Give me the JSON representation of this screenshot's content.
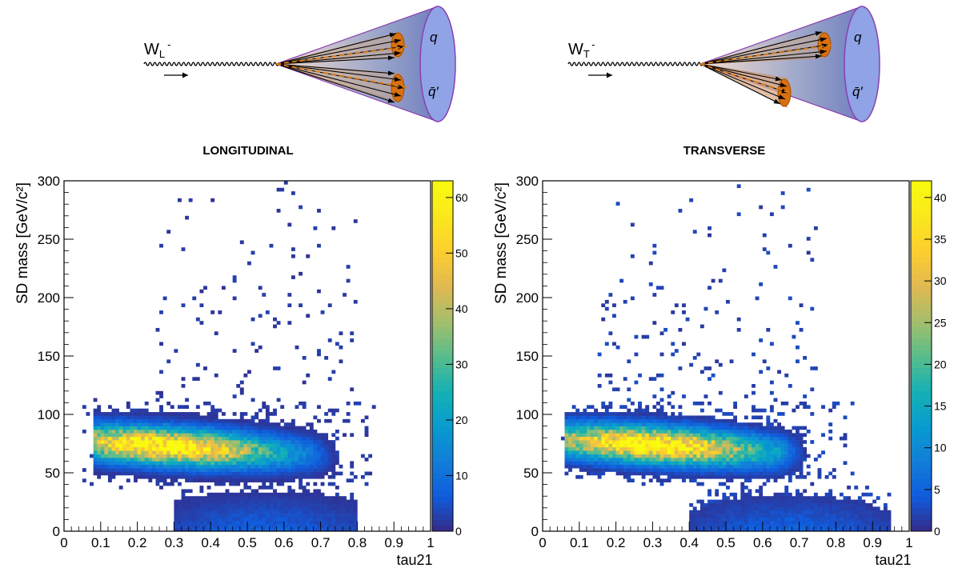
{
  "diagrams": [
    {
      "boson": "W",
      "pol_sub": "L",
      "charge": "-",
      "quark": "q",
      "antiquark": "q̄′",
      "title": "LONGITUDINAL"
    },
    {
      "boson": "W",
      "pol_sub": "T",
      "charge": "-",
      "quark": "q",
      "antiquark": "q̄′",
      "title": "TRANSVERSE"
    }
  ],
  "colors": {
    "cone_outline": "#8a3fb0",
    "cone_fill": "#6f7fbf",
    "cone_mouth": "#8fa3e6",
    "subjet": "#d9700f",
    "dashed": "#e07d10",
    "arrow": "#000000"
  },
  "chart_data": [
    {
      "type": "heatmap",
      "xlabel": "tau21",
      "ylabel": "SD mass [GeV/c²]",
      "xlim": [
        0,
        1
      ],
      "ylim": [
        0,
        300
      ],
      "xticks": [
        "0",
        "0.1",
        "0.2",
        "0.3",
        "0.4",
        "0.5",
        "0.6",
        "0.7",
        "0.8",
        "0.9",
        "1"
      ],
      "yticks": [
        "0",
        "50",
        "100",
        "150",
        "200",
        "250",
        "300"
      ],
      "zlim": [
        0,
        63
      ],
      "zticks": [
        "0",
        "10",
        "20",
        "30",
        "40",
        "50",
        "60"
      ],
      "colormap": "viridis",
      "bins": {
        "x": 100,
        "y": 100
      },
      "density_model": {
        "peak": {
          "x": 0.27,
          "y": 73,
          "value": 63
        },
        "band_x_range": [
          0.08,
          0.68
        ],
        "band_y_range": [
          45,
          100
        ],
        "low_mass_band": {
          "y_range": [
            0,
            40
          ],
          "x_range": [
            0.3,
            0.8
          ]
        },
        "sparse_tail": {
          "y_range": [
            100,
            300
          ],
          "x_range": [
            0.25,
            0.8
          ]
        }
      },
      "grid": false
    },
    {
      "type": "heatmap",
      "xlabel": "tau21",
      "ylabel": "SD mass [GeV/c²]",
      "xlim": [
        0,
        1
      ],
      "ylim": [
        0,
        300
      ],
      "xticks": [
        "0",
        "0.1",
        "0.2",
        "0.3",
        "0.4",
        "0.5",
        "0.6",
        "0.7",
        "0.8",
        "0.9",
        "1"
      ],
      "yticks": [
        "0",
        "50",
        "100",
        "150",
        "200",
        "250",
        "300"
      ],
      "zlim": [
        0,
        42
      ],
      "zticks": [
        "0",
        "5",
        "10",
        "15",
        "20",
        "25",
        "30",
        "35",
        "40"
      ],
      "colormap": "viridis",
      "bins": {
        "x": 100,
        "y": 100
      },
      "density_model": {
        "peak": {
          "x": 0.3,
          "y": 74,
          "value": 42
        },
        "band_x_range": [
          0.06,
          0.65
        ],
        "band_y_range": [
          40,
          100
        ],
        "low_mass_band": {
          "y_range": [
            0,
            40
          ],
          "x_range": [
            0.4,
            0.95
          ]
        },
        "sparse_tail": {
          "y_range": [
            100,
            300
          ],
          "x_range": [
            0.15,
            0.75
          ]
        }
      },
      "grid": false
    }
  ]
}
